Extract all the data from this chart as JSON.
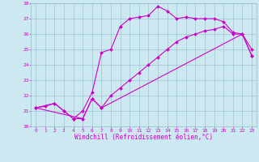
{
  "xlabel": "Windchill (Refroidissement éolien,°C)",
  "bg_color": "#cce8f0",
  "line_color": "#cc00cc",
  "grid_color": "#99bbcc",
  "xlim": [
    -0.5,
    23.5
  ],
  "ylim": [
    20,
    28
  ],
  "yticks": [
    20,
    21,
    22,
    23,
    24,
    25,
    26,
    27,
    28
  ],
  "xticks": [
    0,
    1,
    2,
    3,
    4,
    5,
    6,
    7,
    8,
    9,
    10,
    11,
    12,
    13,
    14,
    15,
    16,
    17,
    18,
    19,
    20,
    21,
    22,
    23
  ],
  "line1_x": [
    0,
    1,
    2,
    3,
    4,
    5,
    6,
    7,
    8,
    9,
    10,
    11,
    12,
    13,
    14,
    15,
    16,
    17,
    18,
    19,
    20,
    21,
    22,
    23
  ],
  "line1_y": [
    21.2,
    21.3,
    21.5,
    21.0,
    20.5,
    21.0,
    22.2,
    24.8,
    25.0,
    26.5,
    27.0,
    27.1,
    27.2,
    27.8,
    27.5,
    27.0,
    27.1,
    27.0,
    27.0,
    27.0,
    26.8,
    26.1,
    26.0,
    25.0
  ],
  "line2_x": [
    0,
    2,
    3,
    4,
    5,
    6,
    7,
    22,
    23
  ],
  "line2_y": [
    21.2,
    21.5,
    21.0,
    20.5,
    20.5,
    21.8,
    21.2,
    26.0,
    24.6
  ],
  "line3_x": [
    0,
    5,
    6,
    7,
    8,
    9,
    10,
    11,
    12,
    13,
    14,
    15,
    16,
    17,
    18,
    19,
    20,
    21,
    22,
    23
  ],
  "line3_y": [
    21.2,
    20.5,
    21.8,
    21.2,
    22.0,
    22.5,
    23.0,
    23.5,
    24.0,
    24.5,
    25.0,
    25.5,
    25.8,
    26.0,
    26.2,
    26.3,
    26.5,
    26.0,
    26.0,
    24.6
  ],
  "marker": "D",
  "markersize": 2,
  "linewidth": 0.8,
  "tick_fontsize": 4.5,
  "xlabel_fontsize": 5.5
}
